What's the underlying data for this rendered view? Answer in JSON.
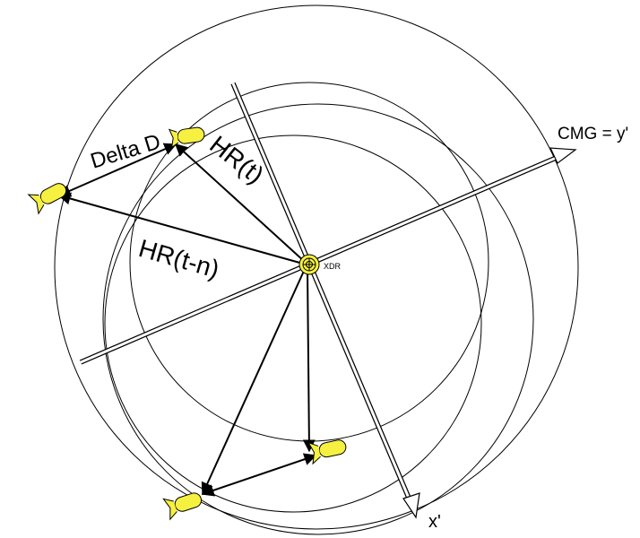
{
  "labels": {
    "delta_d": "Delta D",
    "hr_t": "HR(t)",
    "hr_t_n": "HR(t-n)",
    "cmg_axis": "CMG = y'",
    "x_axis": "x'",
    "xdr": "XDR"
  },
  "colors": {
    "line": "#000000",
    "axis_fill": "#ffffff",
    "sensor_body": "#f6f040",
    "xdr_fill": "#f6f040"
  },
  "icons": {
    "sensor": "yellow-capsule-sensor-icon",
    "xdr": "target-ring-icon"
  }
}
